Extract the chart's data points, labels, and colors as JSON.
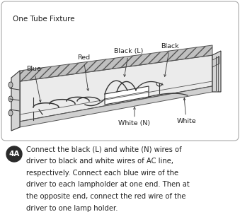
{
  "title": "One Tube Fixture",
  "bg_color": "#ffffff",
  "diagram_bg": "#ffffff",
  "badge_text": "4A",
  "badge_color": "#2a2a2a",
  "description_line1": "Connect the black (L) and white (N) wires of",
  "description_line2": "driver to black and white wires of AC line,",
  "description_line3": "respectively. Connect each blue wire of the",
  "description_line4": "driver to each lampholder at one end. Then at",
  "description_line5": "the opposite end, connect the red wire of the",
  "description_line6": "driver to one lamp holder.",
  "font_size_labels": 6.8,
  "font_size_title": 7.5,
  "font_size_desc": 7.2,
  "label_color": "#222222",
  "line_color": "#333333",
  "fixture_fill": "#f0f0f0",
  "hatch_fill": "#c8c8c8",
  "diag_box_edge": "#aaaaaa"
}
